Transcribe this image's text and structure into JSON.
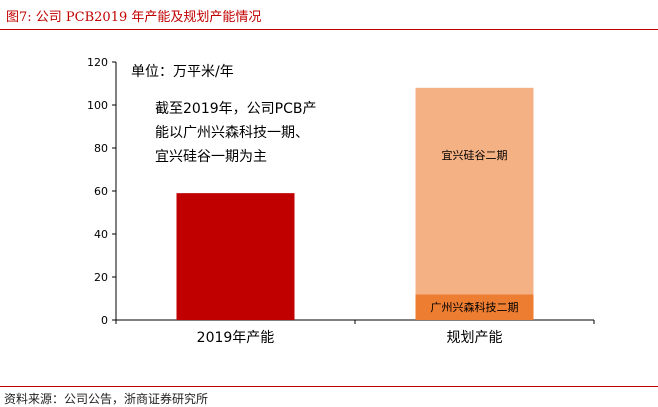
{
  "figure": {
    "title": "图7:  公司 PCB2019 年产能及规划产能情况",
    "source": "资料来源：公司公告，浙商证券研究所"
  },
  "chart_data": {
    "type": "bar",
    "stacked": true,
    "categories": [
      "2019年产能",
      "规划产能"
    ],
    "series": [
      {
        "name": "广州兴森科技一期",
        "values": [
          59,
          0
        ],
        "color": "#c00000"
      },
      {
        "name": "广州兴森科技二期",
        "values": [
          0,
          12
        ],
        "color": "#ed7d31"
      },
      {
        "name": "宜兴硅谷二期",
        "values": [
          0,
          96
        ],
        "color": "#f4b183"
      }
    ],
    "ylim": [
      0,
      120
    ],
    "yticks": [
      0,
      20,
      40,
      60,
      80,
      100,
      120
    ],
    "unit_label": "单位：万平米/年",
    "annotation": [
      "截至2019年，公司PCB产",
      "能以广州兴森科技一期、",
      "宜兴硅谷一期为主"
    ],
    "segment_labels": {
      "yixing": "宜兴硅谷二期",
      "guangzhou2": "广州兴森科技二期"
    },
    "grid": false,
    "legend": "none"
  }
}
